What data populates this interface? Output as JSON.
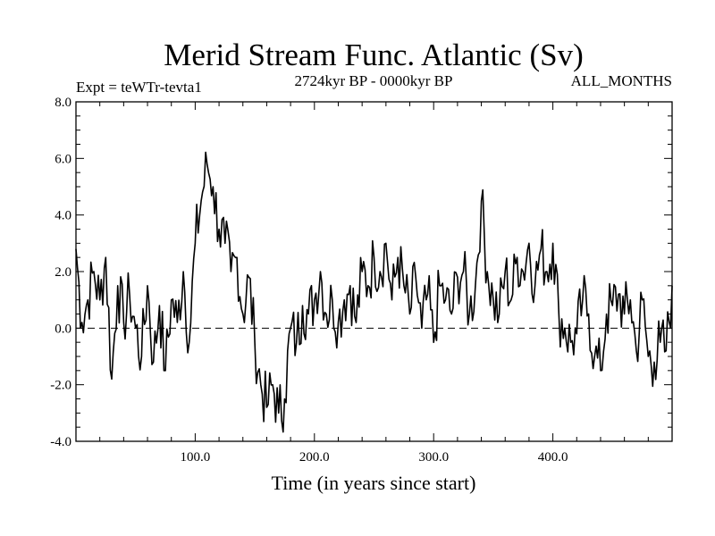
{
  "chart_data": {
    "type": "line",
    "title": "Merid Stream Func. Atlantic (Sv)",
    "subtitle_left": "Expt = teWTr-tevta1",
    "subtitle_center": "2724kyr BP - 0000kyr BP",
    "subtitle_right": "ALL_MONTHS",
    "xlabel": "Time (in years since start)",
    "ylabel": "",
    "xlim": [
      0,
      500
    ],
    "ylim": [
      -4.0,
      8.0
    ],
    "xticks": [
      100,
      200,
      300,
      400
    ],
    "xtick_labels": [
      "100.0",
      "200.0",
      "300.0",
      "400.0"
    ],
    "yticks": [
      -4,
      -2,
      0,
      2,
      4,
      6,
      8
    ],
    "ytick_labels": [
      "-4.0",
      "-2.0",
      "0.0",
      "2.0",
      "4.0",
      "6.0",
      "8.0"
    ],
    "reference_line": 0.0,
    "series": [
      {
        "name": "Merid Stream Func. Atlantic",
        "x": [
          0,
          5,
          10,
          15,
          20,
          25,
          30,
          35,
          40,
          45,
          50,
          55,
          60,
          65,
          70,
          75,
          80,
          85,
          90,
          95,
          100,
          105,
          110,
          115,
          120,
          125,
          130,
          135,
          140,
          145,
          150,
          155,
          160,
          165,
          170,
          175,
          180,
          185,
          190,
          195,
          200,
          205,
          210,
          215,
          220,
          225,
          230,
          235,
          240,
          245,
          250,
          255,
          260,
          265,
          270,
          275,
          280,
          285,
          290,
          295,
          300,
          305,
          310,
          315,
          320,
          325,
          330,
          335,
          340,
          345,
          350,
          355,
          360,
          365,
          370,
          375,
          380,
          385,
          390,
          395,
          400,
          405,
          410,
          415,
          420,
          425,
          430,
          435,
          440,
          445,
          450,
          455,
          460,
          465,
          470,
          475,
          480,
          485,
          490,
          495,
          500
        ],
        "y": [
          2.8,
          0.2,
          1.0,
          2.0,
          1.0,
          2.5,
          -1.8,
          1.5,
          0.2,
          1.2,
          0.0,
          -1.0,
          1.5,
          -1.2,
          0.8,
          -1.5,
          1.0,
          0.2,
          2.0,
          -0.5,
          3.0,
          4.5,
          5.8,
          5.0,
          3.5,
          3.0,
          2.0,
          2.5,
          0.5,
          1.8,
          -0.5,
          -2.0,
          -2.8,
          -2.0,
          -3.0,
          -2.5,
          0.0,
          -0.5,
          0.8,
          0.5,
          1.0,
          2.0,
          0.5,
          1.0,
          0.2,
          1.0,
          1.5,
          0.2,
          2.0,
          1.5,
          2.5,
          2.0,
          3.0,
          1.0,
          2.5,
          1.5,
          0.5,
          1.8,
          0.0,
          1.2,
          -0.5,
          1.5,
          1.0,
          0.5,
          1.8,
          2.0,
          0.5,
          1.5,
          4.5,
          2.0,
          1.0,
          0.5,
          2.0,
          1.0,
          2.5,
          2.0,
          3.0,
          1.5,
          2.8,
          2.0,
          3.0,
          0.5,
          0.0,
          -0.5,
          -0.2,
          1.0,
          0.5,
          -1.0,
          -1.5,
          0.5,
          0.8,
          1.2,
          0.5,
          1.0,
          -0.8,
          1.0,
          -1.0,
          -1.2,
          -0.5,
          -0.8,
          1.5
        ]
      }
    ]
  }
}
